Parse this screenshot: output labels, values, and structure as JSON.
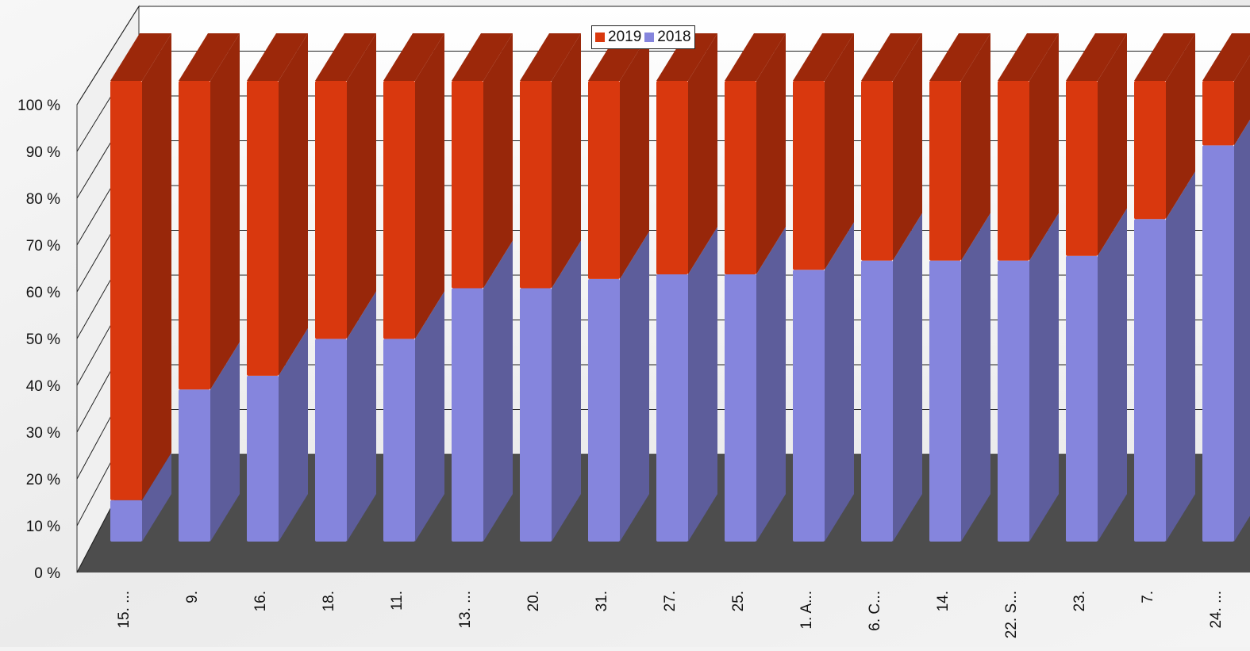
{
  "chart_data": {
    "type": "bar",
    "stacked": true,
    "three_d": true,
    "percent_stacked": true,
    "categories": [
      "15. ...",
      "9.",
      "16.",
      "18.",
      "11.",
      "13. ...",
      "20.",
      "31.",
      "27.",
      "25.",
      "1. A...",
      "6. C...",
      "14.",
      "22. S...",
      "23.",
      "7.",
      "24. ..."
    ],
    "series": [
      {
        "name": "2018",
        "color": "#8585dd",
        "values": [
          9,
          33,
          36,
          44,
          44,
          55,
          55,
          57,
          58,
          58,
          59,
          61,
          61,
          61,
          62,
          70,
          86
        ]
      },
      {
        "name": "2019",
        "color": "#d9380e",
        "values": [
          91,
          67,
          64,
          56,
          56,
          45,
          45,
          43,
          42,
          42,
          41,
          39,
          39,
          39,
          38,
          30,
          14
        ]
      }
    ],
    "y_ticks": [
      "0 %",
      "10 %",
      "20 %",
      "30 %",
      "40 %",
      "50 %",
      "60 %",
      "70 %",
      "80 %",
      "90 %",
      "100 %"
    ],
    "ylim": [
      0,
      100
    ],
    "grid": true,
    "legend": {
      "position": "top-center",
      "entries": [
        "2019",
        "2018"
      ]
    }
  }
}
